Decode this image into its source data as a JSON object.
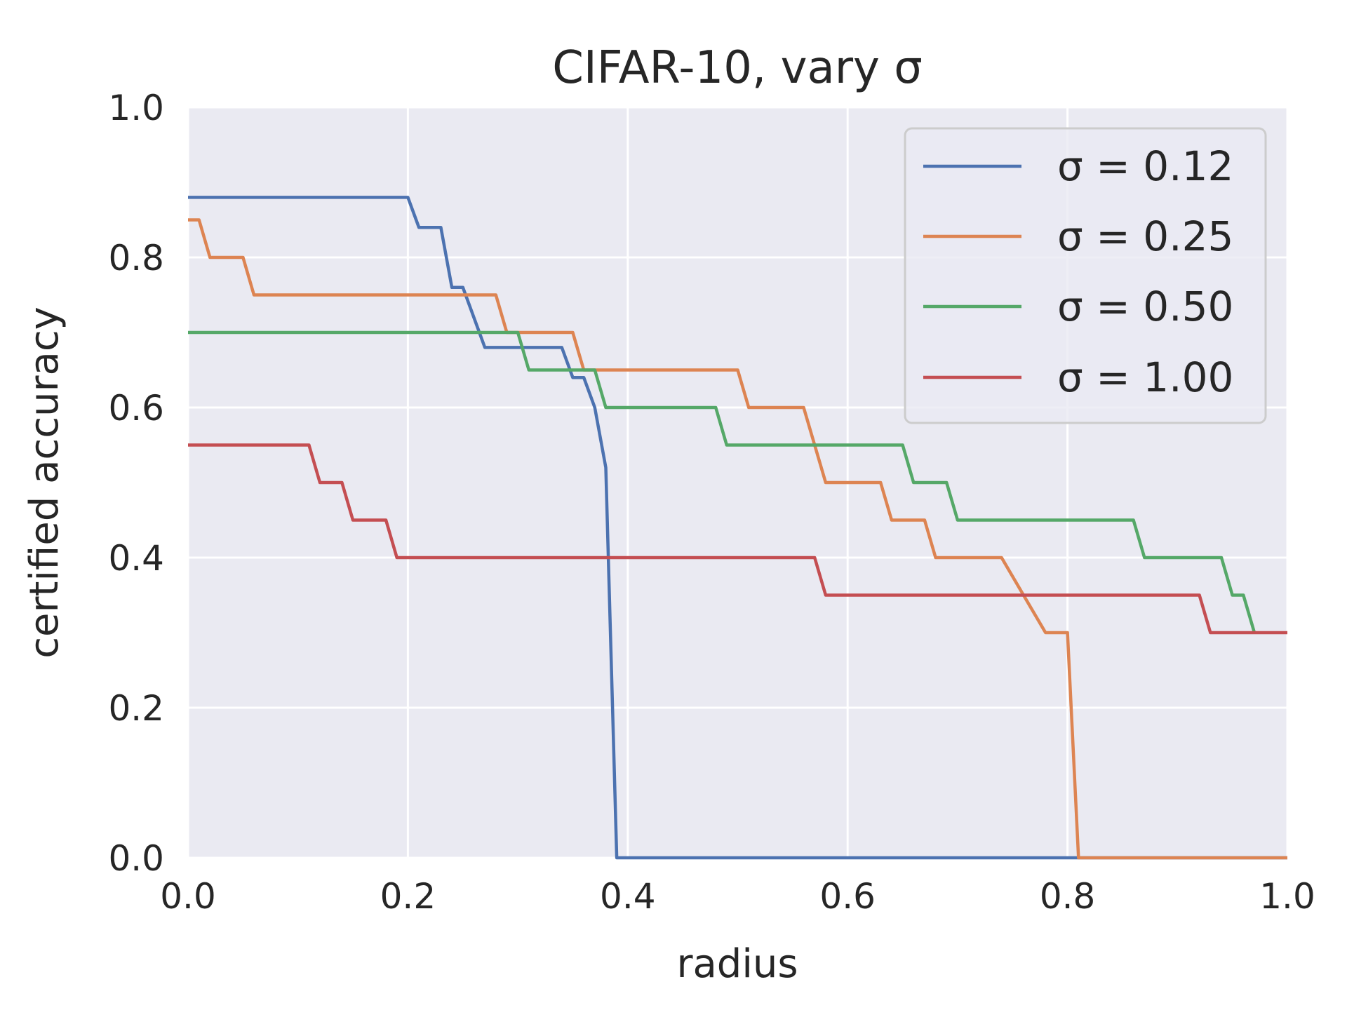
{
  "chart_data": {
    "type": "line",
    "title": "CIFAR-10, vary σ",
    "xlabel": "radius",
    "ylabel": "certified accuracy",
    "xlim": [
      0.0,
      1.0
    ],
    "ylim": [
      0.0,
      1.0
    ],
    "xticks": [
      "0.0",
      "0.2",
      "0.4",
      "0.6",
      "0.8",
      "1.0"
    ],
    "yticks": [
      "0.0",
      "0.2",
      "0.4",
      "0.6",
      "0.8",
      "1.0"
    ],
    "grid": true,
    "legend_position": "top-right",
    "series": [
      {
        "name": "σ = 0.12",
        "color": "#4c72b0",
        "x": [
          0.0,
          0.2,
          0.21,
          0.23,
          0.24,
          0.25,
          0.27,
          0.34,
          0.35,
          0.36,
          0.37,
          0.38,
          0.39,
          1.0
        ],
        "y": [
          0.88,
          0.88,
          0.84,
          0.84,
          0.76,
          0.76,
          0.68,
          0.68,
          0.64,
          0.64,
          0.6,
          0.52,
          0.0,
          0.0
        ]
      },
      {
        "name": "σ = 0.25",
        "color": "#dd8452",
        "x": [
          0.0,
          0.01,
          0.02,
          0.05,
          0.06,
          0.28,
          0.29,
          0.35,
          0.36,
          0.5,
          0.51,
          0.56,
          0.58,
          0.63,
          0.64,
          0.67,
          0.68,
          0.74,
          0.76,
          0.78,
          0.8,
          0.81,
          1.0
        ],
        "y": [
          0.85,
          0.85,
          0.8,
          0.8,
          0.75,
          0.75,
          0.7,
          0.7,
          0.65,
          0.65,
          0.6,
          0.6,
          0.5,
          0.5,
          0.45,
          0.45,
          0.4,
          0.4,
          0.35,
          0.3,
          0.3,
          0.0,
          0.0
        ]
      },
      {
        "name": "σ = 0.50",
        "color": "#55a868",
        "x": [
          0.0,
          0.3,
          0.31,
          0.37,
          0.38,
          0.48,
          0.49,
          0.65,
          0.66,
          0.69,
          0.7,
          0.86,
          0.87,
          0.94,
          0.95,
          0.96,
          0.97
        ],
        "y": [
          0.7,
          0.7,
          0.65,
          0.65,
          0.6,
          0.6,
          0.55,
          0.55,
          0.5,
          0.5,
          0.45,
          0.45,
          0.4,
          0.4,
          0.35,
          0.35,
          0.3
        ]
      },
      {
        "name": "σ = 1.00",
        "color": "#c44e52",
        "x": [
          0.0,
          0.11,
          0.12,
          0.14,
          0.15,
          0.18,
          0.19,
          0.57,
          0.58,
          0.92,
          0.93,
          1.0
        ],
        "y": [
          0.55,
          0.55,
          0.5,
          0.5,
          0.45,
          0.45,
          0.4,
          0.4,
          0.35,
          0.35,
          0.3,
          0.3
        ]
      }
    ]
  }
}
